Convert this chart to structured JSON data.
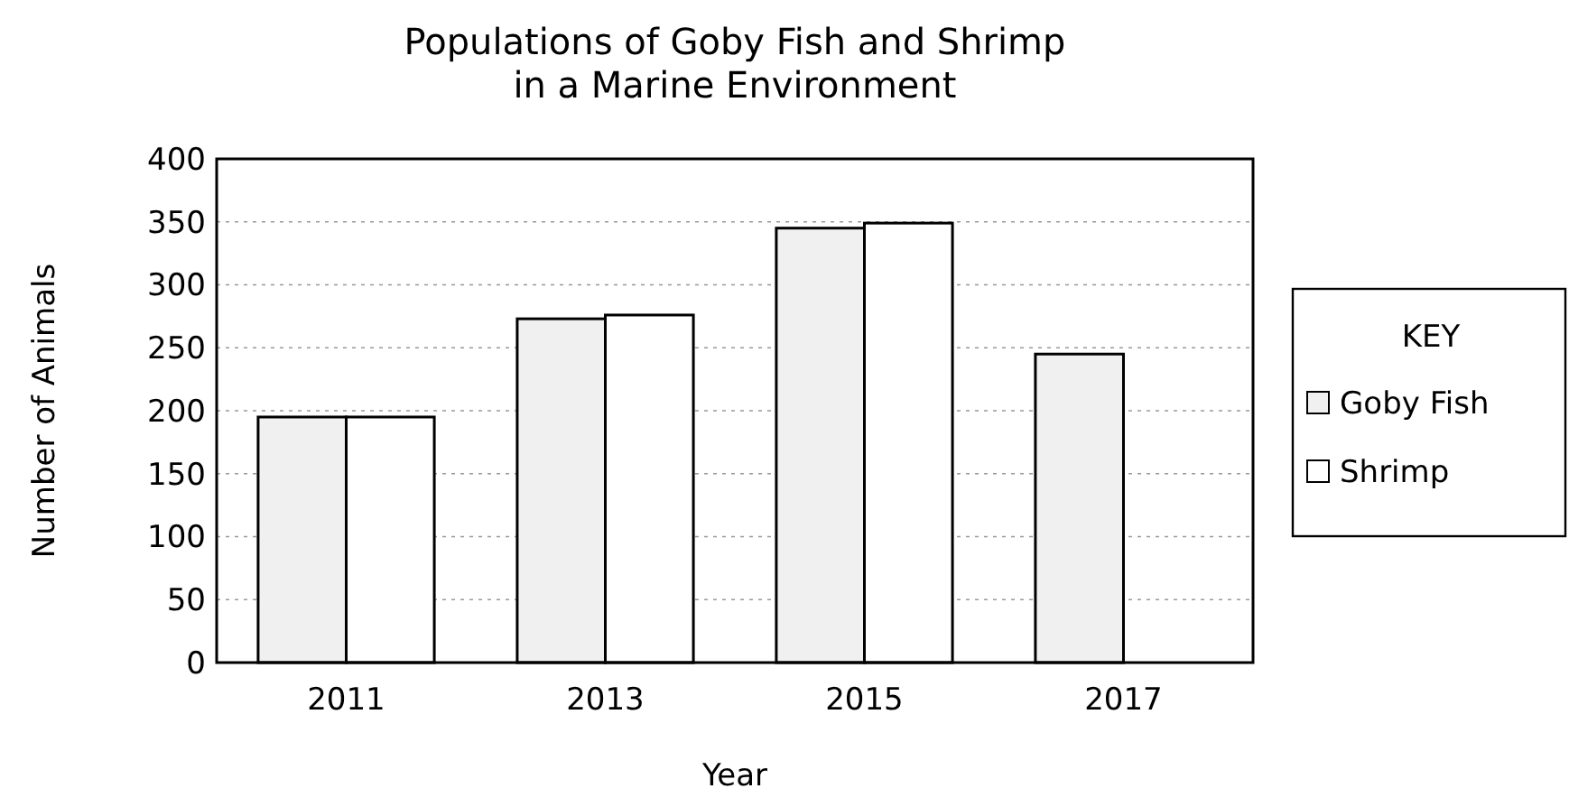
{
  "chart_data": {
    "type": "bar",
    "title": "Populations of Goby Fish and Shrimp\nin a Marine Environment",
    "xlabel": "Year",
    "ylabel": "Number of Animals",
    "legend_title": "KEY",
    "categories": [
      "2011",
      "2013",
      "2015",
      "2017"
    ],
    "series": [
      {
        "name": "Goby Fish",
        "color": "#f0f0f0",
        "values": [
          195,
          273,
          345,
          245
        ]
      },
      {
        "name": "Shrimp",
        "color": "#ffffff",
        "values": [
          195,
          276,
          349,
          null
        ]
      }
    ],
    "ylim": [
      0,
      400
    ],
    "yticks": [
      0,
      50,
      100,
      150,
      200,
      250,
      300,
      350,
      400
    ],
    "grid": "y",
    "legend": "right"
  }
}
